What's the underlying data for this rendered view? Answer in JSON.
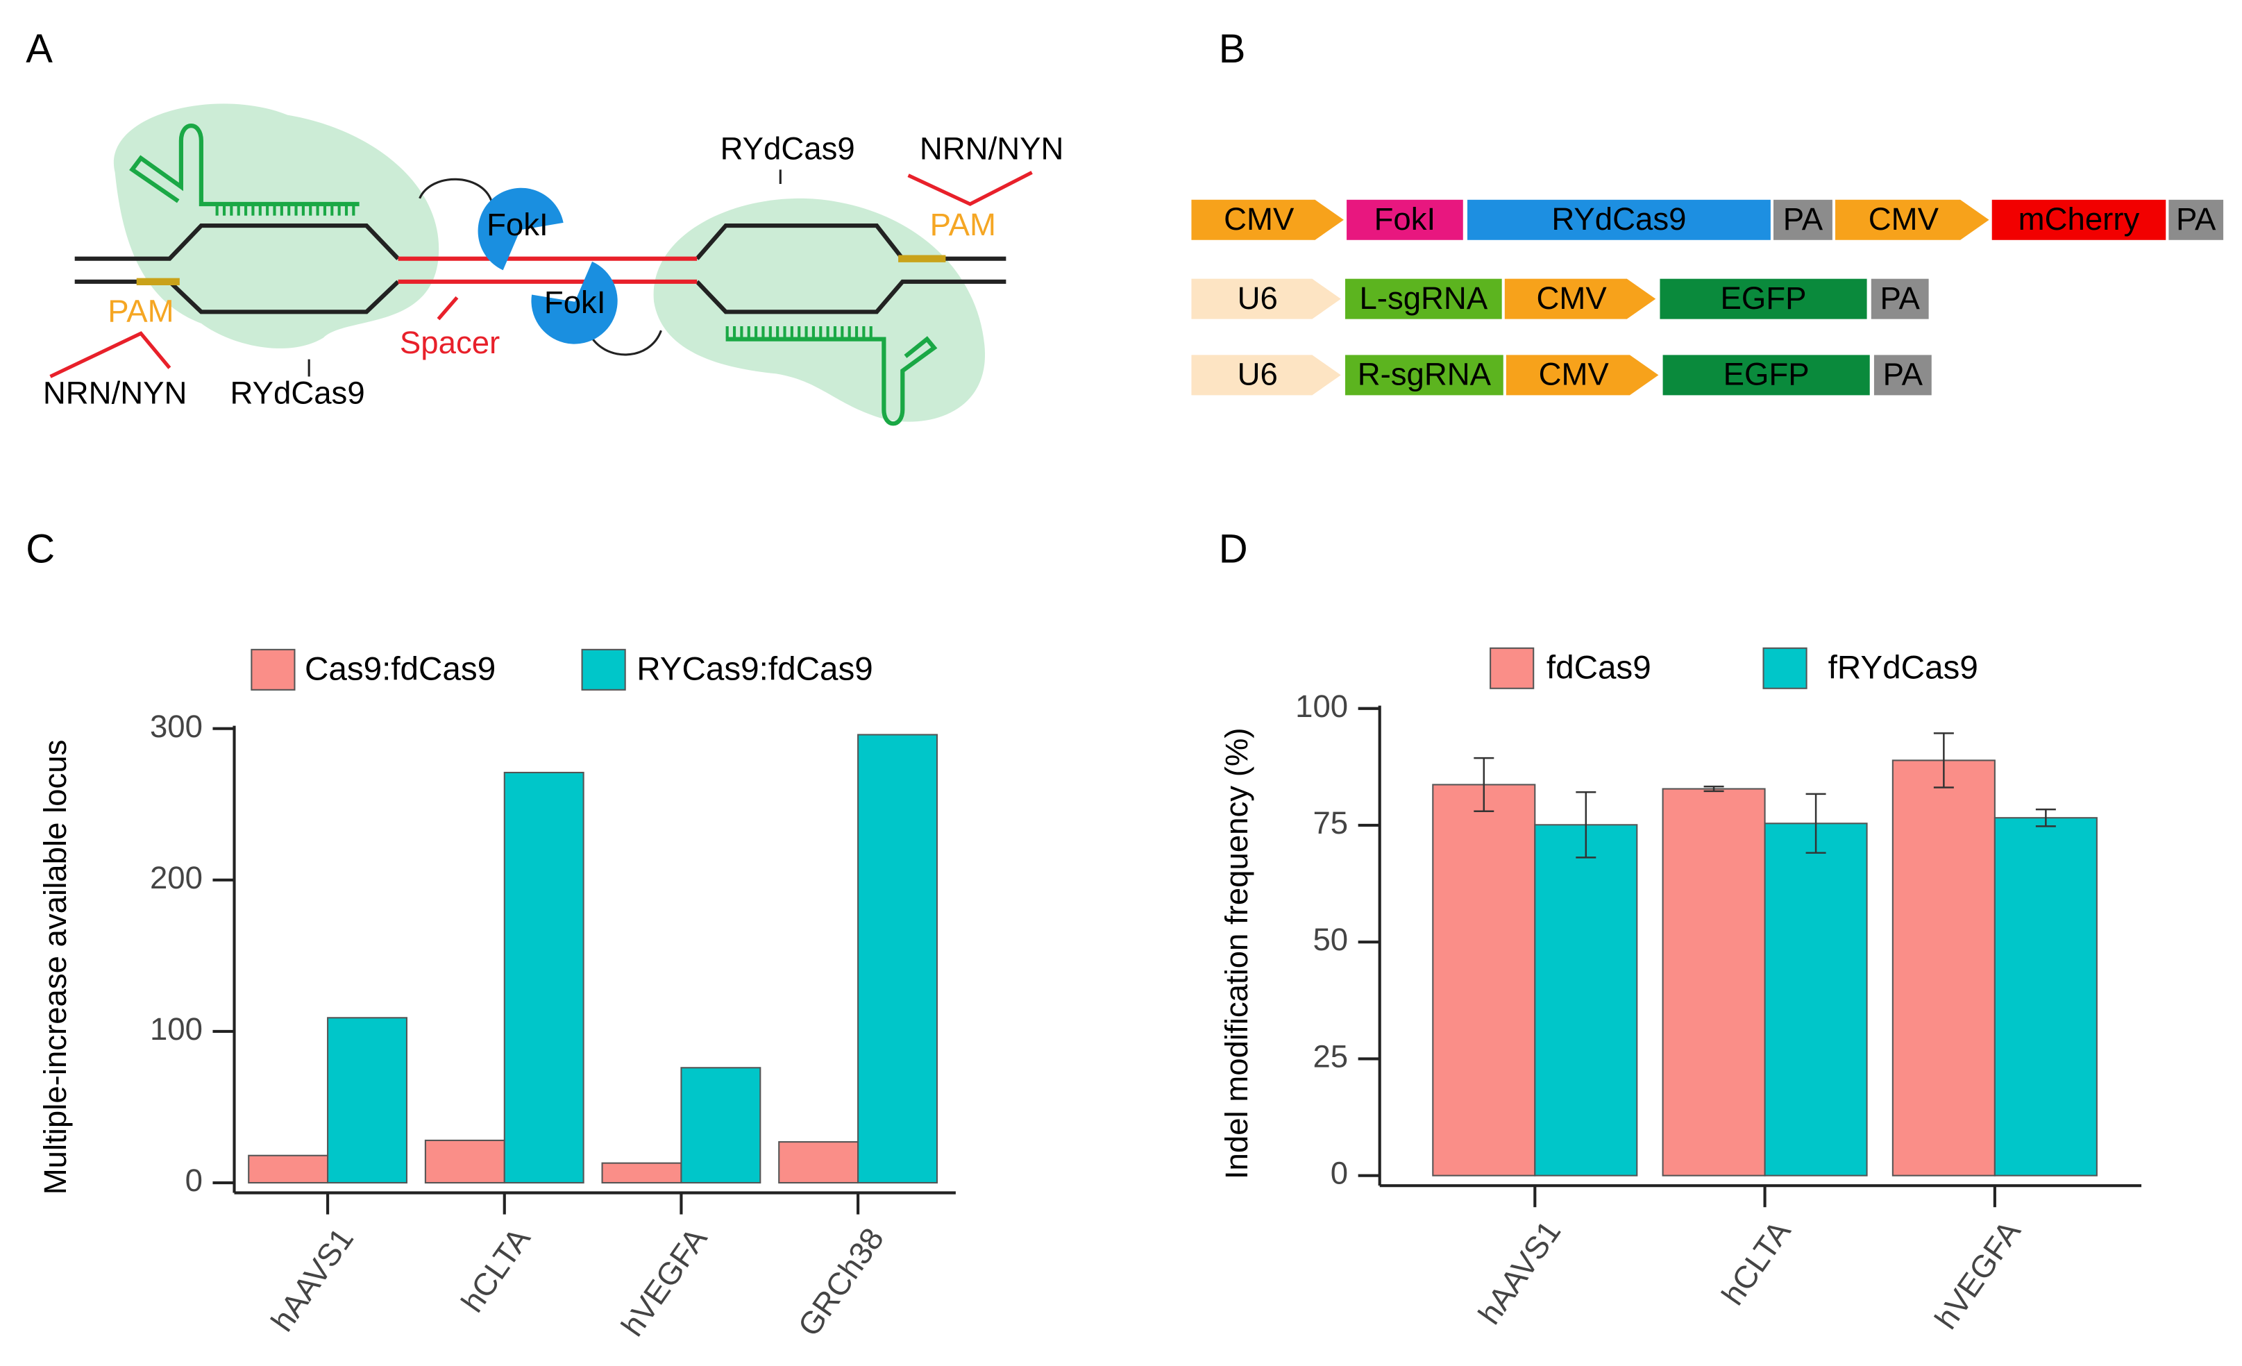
{
  "panels": [
    "A",
    "B",
    "C",
    "D"
  ],
  "diagram_a": {
    "labels": [
      "RYdCas9",
      "NRN/NYN",
      "PAM",
      "PAM",
      "NRN/NYN",
      "RYdCas9",
      "Spacer",
      "FokI",
      "FokI"
    ]
  },
  "diagram_b": {
    "rows": [
      [
        "CMV",
        "FokI",
        "RYdCas9",
        "PA",
        "CMV",
        "mCherry",
        "PA"
      ],
      [
        "U6",
        "L-sgRNA",
        "CMV",
        "EGFP",
        "PA"
      ],
      [
        "U6",
        "R-sgRNA",
        "CMV",
        "EGFP",
        "PA"
      ]
    ]
  },
  "chart_data": [
    {
      "type": "bar",
      "y_label": "Multiple-increase available locus",
      "categories": [
        "hAAVS1",
        "hCLTA",
        "hVEGFA",
        "GRCh38"
      ],
      "series": [
        {
          "name": "Cas9:fdCas9",
          "color": "#fa8e88",
          "values": [
            18,
            28,
            13,
            27
          ]
        },
        {
          "name": "RYCas9:fdCas9",
          "color": "#00c6c9",
          "values": [
            109,
            271,
            76,
            296
          ]
        }
      ],
      "ylim": [
        0,
        300
      ],
      "yticks": [
        0,
        100,
        200,
        300
      ],
      "legend": "top"
    },
    {
      "type": "bar",
      "y_label": "Indel modification frequency (%)",
      "categories": [
        "hAAVS1",
        "hCLTA",
        "hVEGFA"
      ],
      "series": [
        {
          "name": "fdCas9",
          "color": "#fa8e88",
          "values": [
            83.7,
            82.8,
            88.9
          ],
          "errors": [
            5.7,
            0.5,
            5.8
          ]
        },
        {
          "name": "fRYdCas9",
          "color": "#00c6c9",
          "values": [
            75.1,
            75.4,
            76.6
          ],
          "errors": [
            7.0,
            6.3,
            1.8
          ]
        }
      ],
      "ylim": [
        0,
        100
      ],
      "yticks": [
        0,
        25,
        50,
        75,
        100
      ],
      "legend": "top"
    }
  ]
}
